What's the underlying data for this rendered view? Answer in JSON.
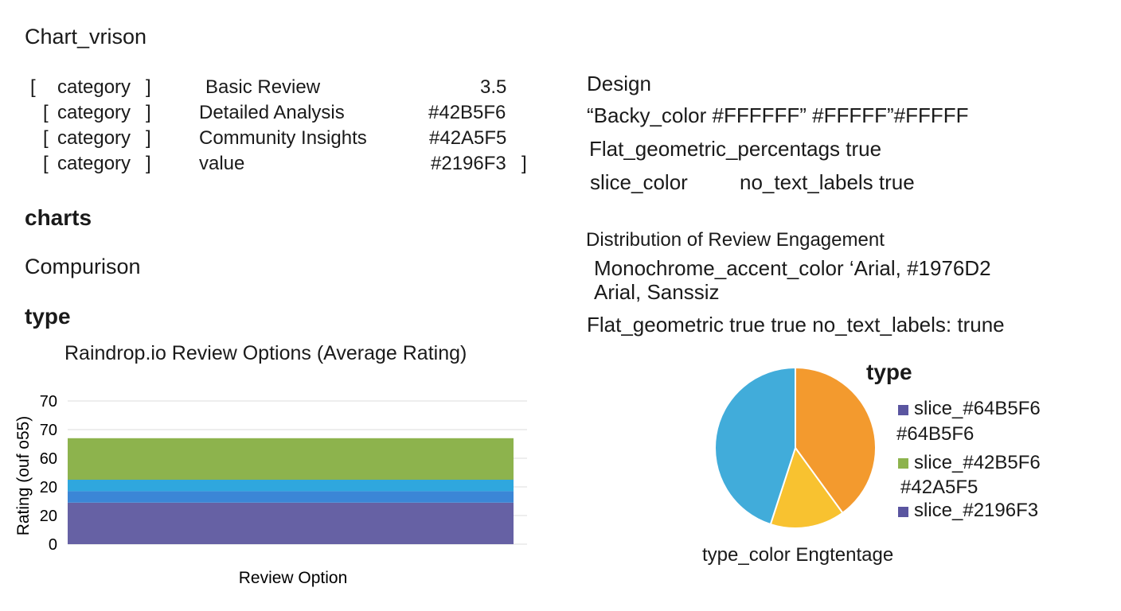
{
  "left": {
    "heading": "Chart_vrison",
    "spec_rows": [
      {
        "open": "[",
        "key": "category",
        "close_a": "]",
        "name": "Basic Review",
        "value": "3.5",
        "close_b": ""
      },
      {
        "open": "[",
        "key": "category",
        "close_a": "]",
        "name": "Detailed Analysis",
        "value": "#42B5F6",
        "close_b": ""
      },
      {
        "open": "[",
        "key": "category",
        "close_a": "]",
        "name": "Community Insights",
        "value": "#42A5F5",
        "close_b": ""
      },
      {
        "open": "[",
        "key": "category",
        "close_a": "]",
        "name": "value",
        "value": "#2196F3",
        "close_b": "]"
      }
    ],
    "charts_label": "charts",
    "comparison_label": "Compurison",
    "type_label": "type"
  },
  "right": {
    "design_label": "Design",
    "line1": "“Backy_color  #FFFFFF” #FFFFF”#FFFFF",
    "line2": "Flat_geometric_percentags   true",
    "line3a": "slice_color",
    "line3b": "no_text_labels true",
    "dist_title": "Distribution of Review Engagement",
    "line4": "Monochrome_accent_color ‘Arial, #1976D2",
    "line5": "Arial, Sanssiz",
    "line6": "Flat_geometric  true  true   no_text_labels: trune"
  },
  "colors": {
    "purple": "#6661A4",
    "blue": "#3B86D6",
    "cyan": "#2FA7DE",
    "green": "#8DB34D",
    "orange": "#F39A2E",
    "yellow": "#F8C230",
    "sky": "#41ACDA",
    "legend_purple": "#5A55A0",
    "legend_green": "#8DB34D"
  },
  "chart_data": [
    {
      "type": "bar",
      "title": "Raindrop.io Review Options (Average Rating)",
      "xlabel": "Review Option",
      "ylabel": "Rating (ouf o55)",
      "y_tick_labels": [
        "70",
        "70",
        "60",
        "20",
        "20",
        "0"
      ],
      "stacked_bands": [
        {
          "name": "",
          "color_key": "purple",
          "from": 0,
          "to": 1.45
        },
        {
          "name": "",
          "color_key": "blue",
          "from": 1.45,
          "to": 1.85
        },
        {
          "name": "",
          "color_key": "cyan",
          "from": 1.85,
          "to": 2.25
        },
        {
          "name": "",
          "color_key": "green",
          "from": 2.25,
          "to": 3.7
        }
      ],
      "ylim": [
        0,
        5
      ],
      "grid": true
    },
    {
      "type": "pie",
      "heading": "type",
      "slices": [
        {
          "label": "",
          "value": 40,
          "color_key": "orange"
        },
        {
          "label": "",
          "value": 15,
          "color_key": "yellow"
        },
        {
          "label": "",
          "value": 45,
          "color_key": "sky"
        }
      ],
      "legend": [
        {
          "label": "slice_#64B5F6",
          "sub": "#64B5F6",
          "color_key": "legend_purple"
        },
        {
          "label": "slice_#42B5F6",
          "sub": "#42A5F5",
          "color_key": "legend_green"
        },
        {
          "label": "slice_#2196F3",
          "sub": "",
          "color_key": "legend_purple"
        }
      ],
      "caption": "type_color Engtentage",
      "legend_position": "right"
    }
  ]
}
